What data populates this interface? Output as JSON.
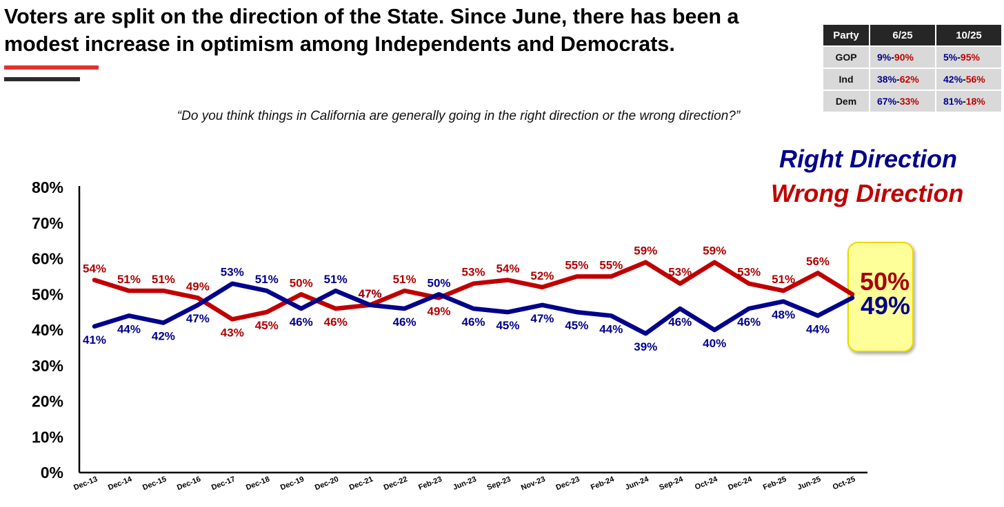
{
  "title": "Voters are split on the direction of the State. Since June, there has been a modest increase in optimism among Independents and Democrats.",
  "question": "“Do you think things in California are generally going in the right direction or the wrong direction?”",
  "party_table": {
    "headers": [
      "Party",
      "6/25",
      "10/25"
    ],
    "rows": [
      {
        "party": "GOP",
        "jun_right": "9%",
        "jun_wrong": "90%",
        "oct_right": "5%",
        "oct_wrong": "95%"
      },
      {
        "party": "Ind",
        "jun_right": "38%",
        "jun_wrong": "62%",
        "oct_right": "42%",
        "oct_wrong": "56%"
      },
      {
        "party": "Dem",
        "jun_right": "67%",
        "jun_wrong": "33%",
        "oct_right": "81%",
        "oct_wrong": "18%"
      }
    ]
  },
  "legend": {
    "right": "Right Direction",
    "wrong": "Wrong Direction"
  },
  "highlight": {
    "wrong": "50%",
    "right": "49%",
    "color": "#ffff99"
  },
  "chart_data": {
    "type": "line",
    "categories": [
      "Dec-13",
      "Dec-14",
      "Dec-15",
      "Dec-16",
      "Dec-17",
      "Dec-18",
      "Dec-19",
      "Dec-20",
      "Dec-21",
      "Dec-22",
      "Feb-23",
      "Jun-23",
      "Sep-23",
      "Nov-23",
      "Dec-23",
      "Feb-24",
      "Jun-24",
      "Sep-24",
      "Oct-24",
      "Dec-24",
      "Feb-25",
      "Jun-25",
      "Oct-25"
    ],
    "series": [
      {
        "name": "Right Direction",
        "color": "#00008b",
        "values": [
          41,
          44,
          42,
          47,
          53,
          51,
          46,
          51,
          47,
          46,
          50,
          46,
          45,
          47,
          45,
          44,
          39,
          46,
          40,
          46,
          48,
          44,
          49
        ]
      },
      {
        "name": "Wrong Direction",
        "color": "#c00000",
        "values": [
          54,
          51,
          51,
          49,
          43,
          45,
          50,
          46,
          47,
          51,
          49,
          53,
          54,
          52,
          55,
          55,
          59,
          53,
          59,
          53,
          51,
          56,
          50
        ]
      }
    ],
    "ylim": [
      0,
      80
    ],
    "yticks": [
      "0%",
      "10%",
      "20%",
      "30%",
      "40%",
      "50%",
      "60%",
      "70%",
      "80%"
    ],
    "grid": false,
    "legend_placement": "top-right"
  }
}
